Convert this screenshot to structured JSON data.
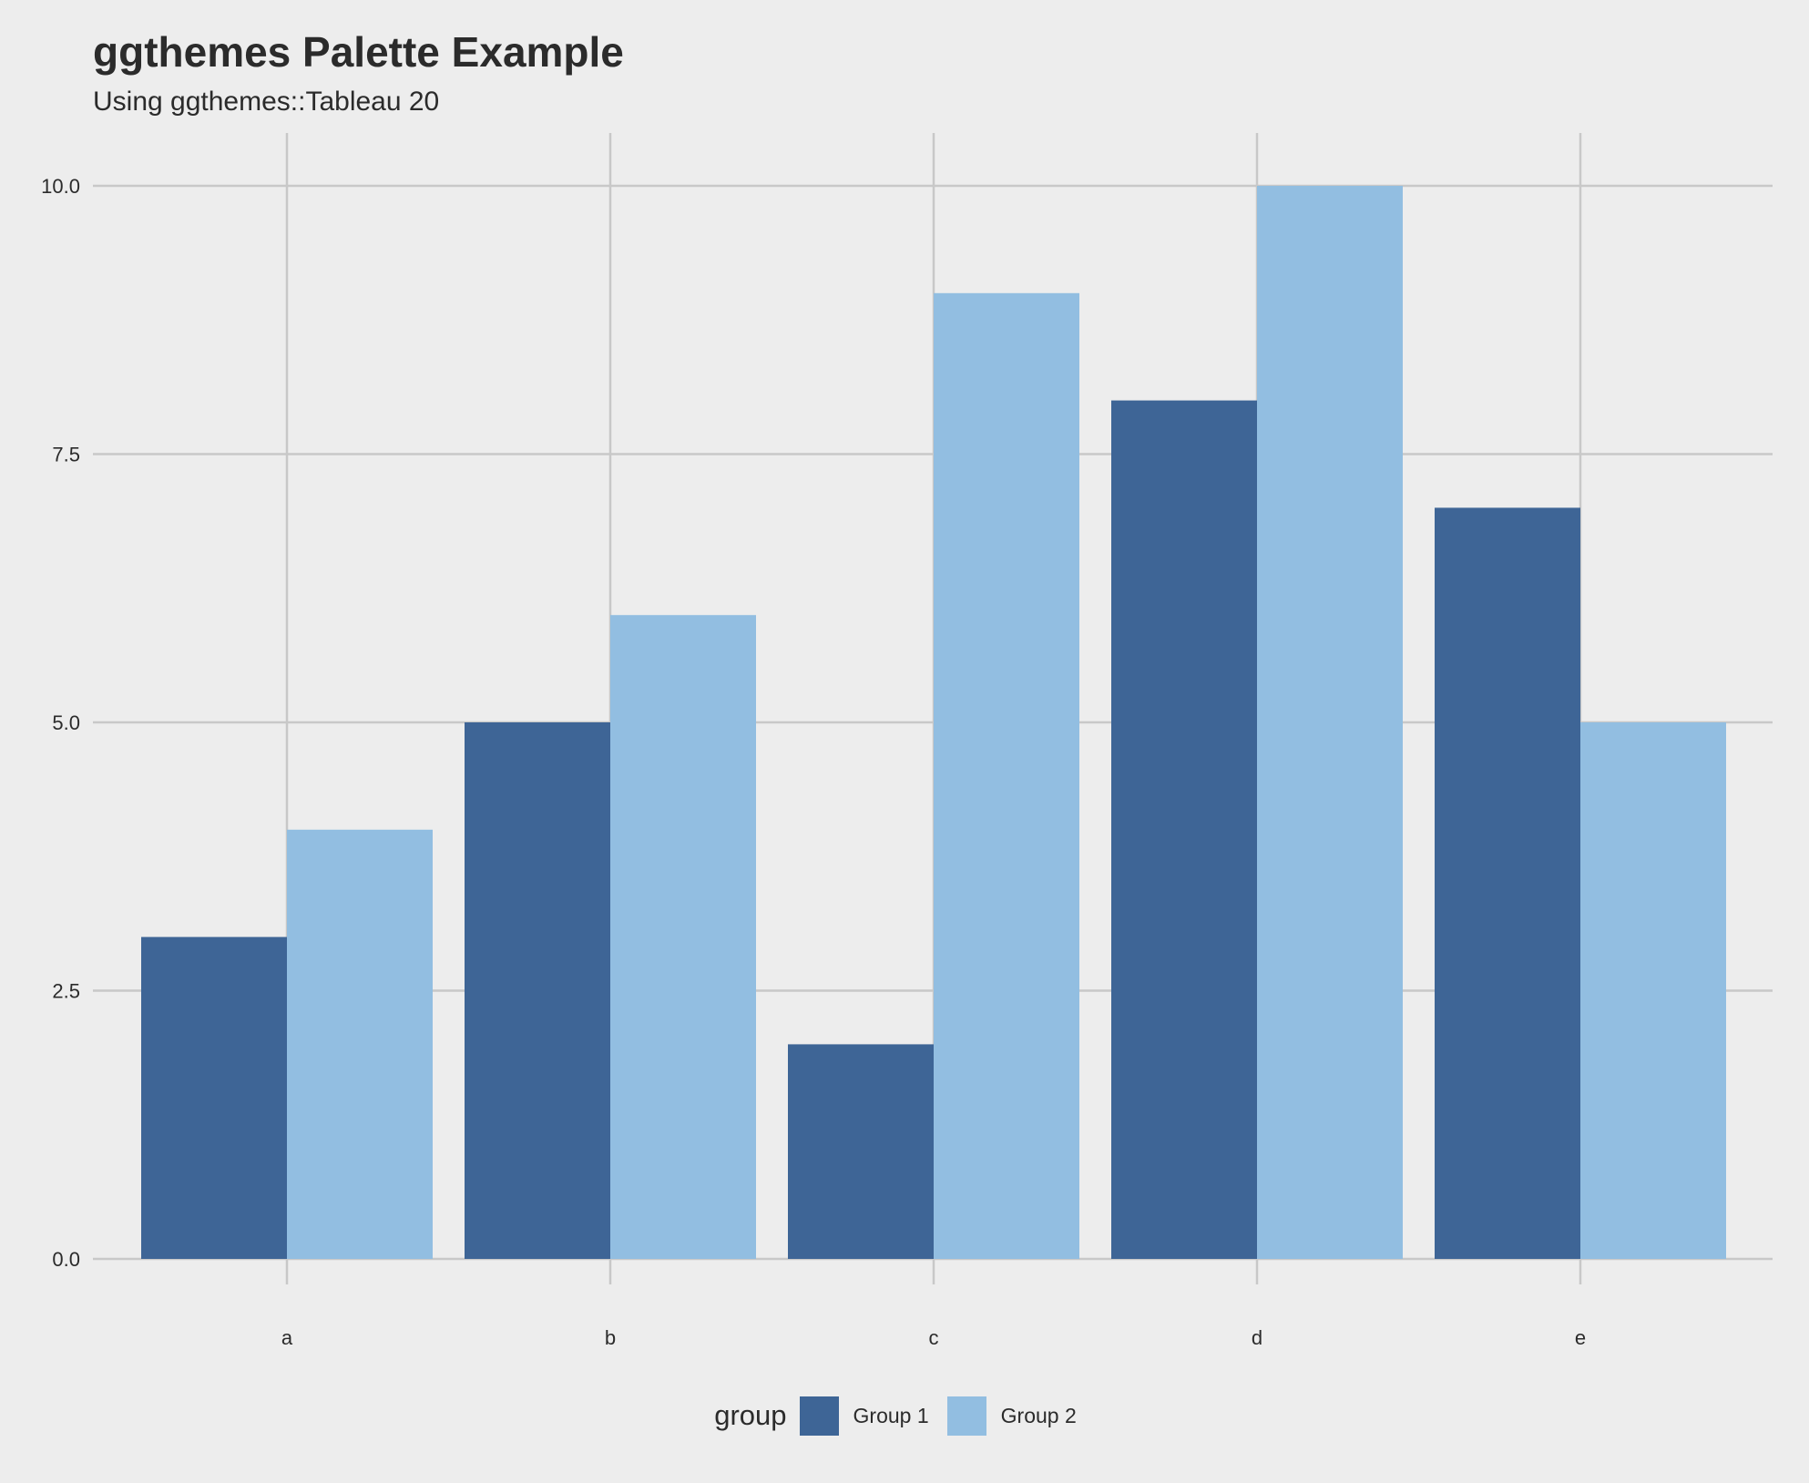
{
  "chart_data": {
    "type": "bar",
    "title": "ggthemes Palette Example",
    "subtitle": "Using ggthemes::Tableau 20",
    "categories": [
      "a",
      "b",
      "c",
      "d",
      "e"
    ],
    "series": [
      {
        "name": "Group 1",
        "values": [
          3,
          5,
          2,
          8,
          7
        ],
        "color": "#3e6596"
      },
      {
        "name": "Group 2",
        "values": [
          4,
          6,
          9,
          10,
          5
        ],
        "color": "#92bee1"
      }
    ],
    "ylim": [
      0,
      10
    ],
    "yticks": [
      "0.0",
      "2.5",
      "5.0",
      "7.5",
      "10.0"
    ],
    "legend_title": "group",
    "legend_position": "bottom",
    "grid": true
  }
}
